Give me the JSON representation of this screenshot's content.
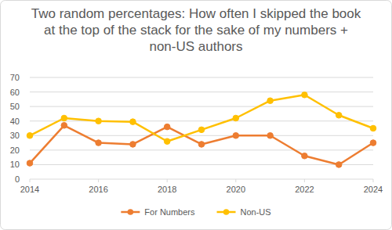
{
  "chart_data": {
    "type": "line",
    "title": "Two random percentages: How often I skipped the book at the top of the stack for the sake of my numbers + non-US authors",
    "x": [
      2014,
      2015,
      2016,
      2017,
      2018,
      2019,
      2020,
      2021,
      2022,
      2023,
      2024
    ],
    "series": [
      {
        "name": "For Numbers",
        "color": "#ed7d31",
        "marker": "circle",
        "values": [
          11,
          37,
          25,
          24,
          36,
          24,
          30,
          30,
          16,
          10,
          25
        ]
      },
      {
        "name": "Non-US",
        "color": "#ffc000",
        "marker": "circle",
        "values": [
          30,
          42,
          40,
          39.5,
          26,
          34,
          42,
          54,
          58,
          44,
          35
        ]
      }
    ],
    "xlim": [
      2014,
      2024
    ],
    "xticks": [
      2014,
      2016,
      2018,
      2020,
      2022,
      2024
    ],
    "ylim": [
      0,
      70
    ],
    "yticks": [
      0,
      10,
      20,
      30,
      40,
      50,
      60,
      70
    ],
    "grid": true,
    "legend": "bottom"
  }
}
